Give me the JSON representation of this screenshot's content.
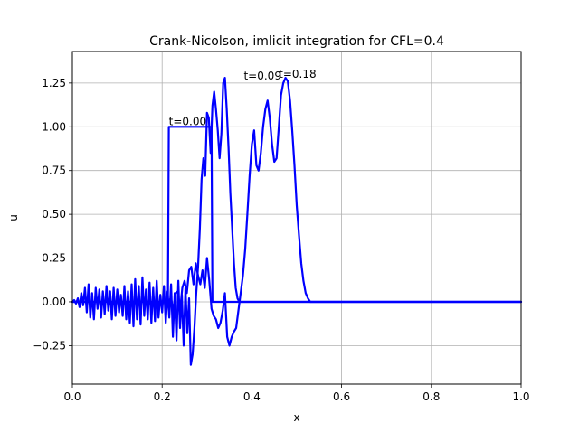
{
  "chart_data": {
    "type": "line",
    "title": "Crank-Nicolson, imlicit integration for  CFL=0.4",
    "xlabel": "x",
    "ylabel": "u",
    "xlim": [
      0,
      1
    ],
    "ylim": [
      -0.47,
      1.43
    ],
    "grid": true,
    "xticks": [
      {
        "value": 0.0,
        "label": "0.0"
      },
      {
        "value": 0.2,
        "label": "0.2"
      },
      {
        "value": 0.4,
        "label": "0.4"
      },
      {
        "value": 0.6,
        "label": "0.6"
      },
      {
        "value": 0.8,
        "label": "0.8"
      },
      {
        "value": 1.0,
        "label": "1.0"
      }
    ],
    "yticks": [
      {
        "value": -0.25,
        "label": "−0.25"
      },
      {
        "value": 0.0,
        "label": "0.00"
      },
      {
        "value": 0.25,
        "label": "0.25"
      },
      {
        "value": 0.5,
        "label": "0.50"
      },
      {
        "value": 0.75,
        "label": "0.75"
      },
      {
        "value": 1.0,
        "label": "1.00"
      },
      {
        "value": 1.25,
        "label": "1.25"
      }
    ],
    "color": "#0000ff",
    "series": [
      {
        "x": [
          0,
          0.213,
          0.215,
          0.31,
          0.312,
          1.0
        ],
        "y": [
          0,
          0,
          1.0,
          1.0,
          0,
          0
        ]
      },
      {
        "x": [
          0,
          0.004,
          0.008,
          0.012,
          0.016,
          0.02,
          0.024,
          0.028,
          0.032,
          0.036,
          0.04,
          0.044,
          0.048,
          0.052,
          0.056,
          0.06,
          0.064,
          0.068,
          0.072,
          0.076,
          0.08,
          0.084,
          0.088,
          0.092,
          0.096,
          0.1,
          0.104,
          0.108,
          0.112,
          0.116,
          0.12,
          0.124,
          0.128,
          0.132,
          0.136,
          0.14,
          0.144,
          0.148,
          0.152,
          0.156,
          0.16,
          0.164,
          0.168,
          0.172,
          0.176,
          0.18,
          0.184,
          0.188,
          0.192,
          0.196,
          0.2,
          0.204,
          0.208,
          0.212,
          0.216,
          0.22,
          0.224,
          0.228,
          0.232,
          0.236,
          0.24,
          0.244,
          0.248,
          0.252,
          0.256,
          0.26,
          0.264,
          0.268,
          0.272,
          0.276,
          0.28,
          0.284,
          0.288,
          0.292,
          0.296,
          0.3,
          0.304,
          0.308,
          0.312,
          0.316,
          0.32,
          0.324,
          0.328,
          0.332,
          0.336,
          0.34,
          0.344,
          0.348,
          0.352,
          0.356,
          0.36,
          0.364,
          0.368,
          0.372,
          0.376,
          0.38,
          0.384,
          0.388,
          0.392,
          0.396,
          0.4,
          0.404,
          0.408,
          0.412,
          0.416,
          0.42,
          0.43,
          0.45,
          0.5,
          1.0
        ],
        "y": [
          0,
          0.01,
          -0.01,
          0.02,
          -0.03,
          0.05,
          -0.02,
          0.08,
          -0.06,
          0.1,
          -0.09,
          0.05,
          -0.1,
          0.08,
          -0.04,
          0.07,
          -0.09,
          0.06,
          -0.07,
          0.09,
          -0.05,
          0.06,
          -0.1,
          0.08,
          -0.08,
          0.07,
          -0.06,
          0.04,
          -0.08,
          0.09,
          -0.1,
          0.06,
          -0.12,
          0.1,
          -0.14,
          0.13,
          -0.1,
          0.09,
          -0.13,
          0.14,
          -0.08,
          0.07,
          -0.1,
          0.11,
          -0.12,
          0.08,
          -0.11,
          0.12,
          -0.09,
          0.04,
          -0.06,
          0.09,
          -0.12,
          0.06,
          -0.09,
          0.1,
          -0.2,
          0.05,
          -0.22,
          0.12,
          -0.15,
          0.04,
          -0.25,
          0.08,
          -0.18,
          0.02,
          -0.36,
          -0.3,
          -0.15,
          0.05,
          0.2,
          0.42,
          0.7,
          0.82,
          0.72,
          1.08,
          1.05,
          0.85,
          1.12,
          1.2,
          1.1,
          0.98,
          0.82,
          0.96,
          1.25,
          1.28,
          1.1,
          0.88,
          0.62,
          0.42,
          0.22,
          0.08,
          0.02,
          0.0,
          0.0,
          0.0,
          0.0,
          0.0,
          0.0,
          0.0,
          0.0,
          0.0,
          0.0,
          0.0,
          0.0,
          0.0,
          0.0,
          0.0,
          0.0,
          0.0
        ]
      },
      {
        "x": [
          0,
          0.2,
          0.21,
          0.22,
          0.225,
          0.23,
          0.235,
          0.24,
          0.245,
          0.25,
          0.255,
          0.26,
          0.265,
          0.27,
          0.275,
          0.28,
          0.285,
          0.29,
          0.295,
          0.3,
          0.305,
          0.31,
          0.315,
          0.32,
          0.325,
          0.33,
          0.335,
          0.34,
          0.345,
          0.35,
          0.355,
          0.36,
          0.365,
          0.37,
          0.375,
          0.38,
          0.385,
          0.39,
          0.395,
          0.4,
          0.405,
          0.41,
          0.415,
          0.42,
          0.425,
          0.43,
          0.435,
          0.44,
          0.445,
          0.45,
          0.455,
          0.46,
          0.465,
          0.47,
          0.475,
          0.48,
          0.485,
          0.49,
          0.495,
          0.5,
          0.505,
          0.51,
          0.515,
          0.52,
          0.525,
          0.53,
          0.54,
          0.55,
          1.0
        ],
        "y": [
          0,
          0,
          0.0,
          0.02,
          -0.05,
          0.05,
          0.06,
          -0.05,
          0.08,
          0.12,
          0.05,
          0.18,
          0.2,
          0.1,
          0.22,
          0.15,
          0.1,
          0.18,
          0.08,
          0.25,
          0.12,
          -0.04,
          -0.08,
          -0.1,
          -0.15,
          -0.12,
          -0.05,
          0.05,
          -0.2,
          -0.25,
          -0.2,
          -0.17,
          -0.15,
          -0.05,
          0.05,
          0.15,
          0.3,
          0.5,
          0.72,
          0.9,
          0.98,
          0.78,
          0.75,
          0.85,
          1.0,
          1.1,
          1.15,
          1.05,
          0.9,
          0.8,
          0.82,
          1.0,
          1.18,
          1.25,
          1.28,
          1.26,
          1.15,
          0.98,
          0.78,
          0.55,
          0.38,
          0.22,
          0.12,
          0.05,
          0.02,
          0.0,
          0.0,
          0.0,
          0.0
        ]
      }
    ],
    "annotations": [
      {
        "text": "t=0.00",
        "x": 0.215,
        "y": 1.01
      },
      {
        "text": "t=0.09",
        "x": 0.382,
        "y": 1.27
      },
      {
        "text": "t=0.18",
        "x": 0.46,
        "y": 1.28
      }
    ]
  }
}
